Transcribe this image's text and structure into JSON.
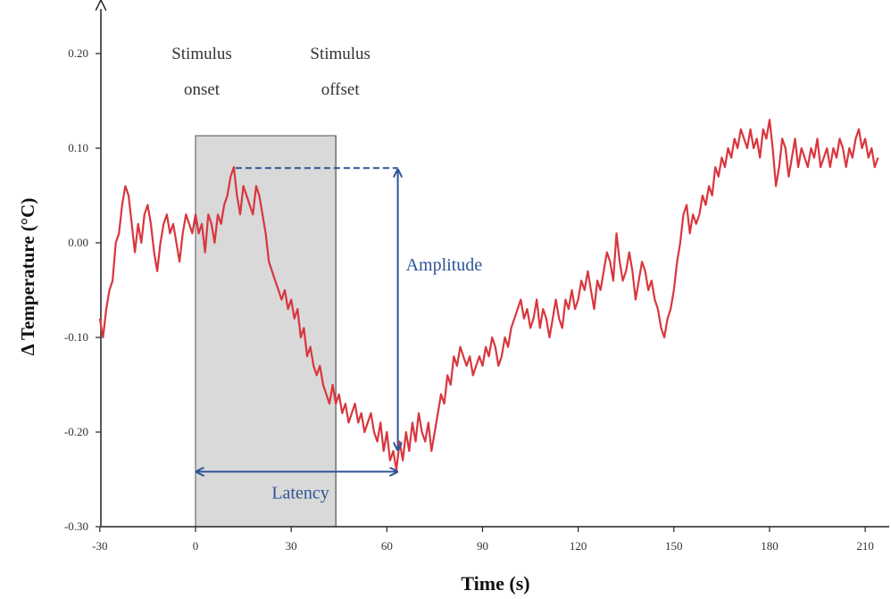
{
  "chart_data": {
    "type": "line",
    "title": "",
    "xlabel": "Time (s)",
    "ylabel": "Δ Temperature (°C)",
    "xlim": [
      -30,
      215
    ],
    "ylim": [
      -0.3,
      0.25
    ],
    "x_ticks": [
      {
        "value": -30,
        "label": "-30"
      },
      {
        "value": 0,
        "label": "0"
      },
      {
        "value": 30,
        "label": "30"
      },
      {
        "value": 60,
        "label": "60"
      },
      {
        "value": 90,
        "label": "90"
      },
      {
        "value": 120,
        "label": "120"
      },
      {
        "value": 150,
        "label": "150"
      },
      {
        "value": 180,
        "label": "180"
      },
      {
        "value": 210,
        "label": "210"
      }
    ],
    "y_ticks": [
      {
        "value": 0.2,
        "label": "0.20"
      },
      {
        "value": 0.1,
        "label": "0.10"
      },
      {
        "value": 0.0,
        "label": "0.00"
      },
      {
        "value": -0.1,
        "label": "-0.10"
      },
      {
        "value": -0.2,
        "label": "-0.20"
      },
      {
        "value": -0.3,
        "label": "-0.30"
      }
    ],
    "grid": false,
    "line_color": "#d9363e",
    "annotation_color": "#2e5496",
    "stimulus_region": {
      "start": 0,
      "end": 44,
      "fill": "#d9d9d9",
      "onset_label": [
        "Stimulus",
        "onset"
      ],
      "offset_label": [
        "Stimulus",
        "offset"
      ]
    },
    "amplitude": {
      "label": "Amplitude",
      "peak_y": 0.08,
      "trough_y": -0.22,
      "peak_x_start": 12,
      "arrow_x": 64
    },
    "latency": {
      "label": "Latency",
      "x_start": 0,
      "x_end": 63,
      "y": -0.24
    },
    "series": [
      {
        "values": [
          [
            -30,
            -0.08
          ],
          [
            -29,
            -0.1
          ],
          [
            -28,
            -0.07
          ],
          [
            -27,
            -0.05
          ],
          [
            -26,
            -0.04
          ],
          [
            -25,
            0.0
          ],
          [
            -24,
            0.01
          ],
          [
            -23,
            0.04
          ],
          [
            -22,
            0.06
          ],
          [
            -21,
            0.05
          ],
          [
            -20,
            0.02
          ],
          [
            -19,
            -0.01
          ],
          [
            -18,
            0.02
          ],
          [
            -17,
            0.0
          ],
          [
            -16,
            0.03
          ],
          [
            -15,
            0.04
          ],
          [
            -14,
            0.02
          ],
          [
            -13,
            -0.01
          ],
          [
            -12,
            -0.03
          ],
          [
            -11,
            0.0
          ],
          [
            -10,
            0.02
          ],
          [
            -9,
            0.03
          ],
          [
            -8,
            0.01
          ],
          [
            -7,
            0.02
          ],
          [
            -6,
            0.0
          ],
          [
            -5,
            -0.02
          ],
          [
            -4,
            0.01
          ],
          [
            -3,
            0.03
          ],
          [
            -2,
            0.02
          ],
          [
            -1,
            0.01
          ],
          [
            0,
            0.03
          ],
          [
            1,
            0.01
          ],
          [
            2,
            0.02
          ],
          [
            3,
            -0.01
          ],
          [
            4,
            0.03
          ],
          [
            5,
            0.02
          ],
          [
            6,
            0.0
          ],
          [
            7,
            0.03
          ],
          [
            8,
            0.02
          ],
          [
            9,
            0.04
          ],
          [
            10,
            0.05
          ],
          [
            11,
            0.07
          ],
          [
            12,
            0.08
          ],
          [
            13,
            0.05
          ],
          [
            14,
            0.03
          ],
          [
            15,
            0.06
          ],
          [
            16,
            0.05
          ],
          [
            17,
            0.04
          ],
          [
            18,
            0.03
          ],
          [
            19,
            0.06
          ],
          [
            20,
            0.05
          ],
          [
            21,
            0.03
          ],
          [
            22,
            0.01
          ],
          [
            23,
            -0.02
          ],
          [
            24,
            -0.03
          ],
          [
            25,
            -0.04
          ],
          [
            26,
            -0.05
          ],
          [
            27,
            -0.06
          ],
          [
            28,
            -0.05
          ],
          [
            29,
            -0.07
          ],
          [
            30,
            -0.06
          ],
          [
            31,
            -0.08
          ],
          [
            32,
            -0.07
          ],
          [
            33,
            -0.1
          ],
          [
            34,
            -0.09
          ],
          [
            35,
            -0.12
          ],
          [
            36,
            -0.11
          ],
          [
            37,
            -0.13
          ],
          [
            38,
            -0.14
          ],
          [
            39,
            -0.13
          ],
          [
            40,
            -0.15
          ],
          [
            41,
            -0.16
          ],
          [
            42,
            -0.17
          ],
          [
            43,
            -0.15
          ],
          [
            44,
            -0.17
          ],
          [
            45,
            -0.16
          ],
          [
            46,
            -0.18
          ],
          [
            47,
            -0.17
          ],
          [
            48,
            -0.19
          ],
          [
            49,
            -0.18
          ],
          [
            50,
            -0.17
          ],
          [
            51,
            -0.19
          ],
          [
            52,
            -0.18
          ],
          [
            53,
            -0.2
          ],
          [
            54,
            -0.19
          ],
          [
            55,
            -0.18
          ],
          [
            56,
            -0.2
          ],
          [
            57,
            -0.21
          ],
          [
            58,
            -0.19
          ],
          [
            59,
            -0.22
          ],
          [
            60,
            -0.2
          ],
          [
            61,
            -0.23
          ],
          [
            62,
            -0.22
          ],
          [
            63,
            -0.24
          ],
          [
            64,
            -0.21
          ],
          [
            65,
            -0.23
          ],
          [
            66,
            -0.2
          ],
          [
            67,
            -0.22
          ],
          [
            68,
            -0.19
          ],
          [
            69,
            -0.21
          ],
          [
            70,
            -0.18
          ],
          [
            71,
            -0.2
          ],
          [
            72,
            -0.21
          ],
          [
            73,
            -0.19
          ],
          [
            74,
            -0.22
          ],
          [
            75,
            -0.2
          ],
          [
            76,
            -0.18
          ],
          [
            77,
            -0.16
          ],
          [
            78,
            -0.17
          ],
          [
            79,
            -0.14
          ],
          [
            80,
            -0.15
          ],
          [
            81,
            -0.12
          ],
          [
            82,
            -0.13
          ],
          [
            83,
            -0.11
          ],
          [
            84,
            -0.12
          ],
          [
            85,
            -0.13
          ],
          [
            86,
            -0.12
          ],
          [
            87,
            -0.14
          ],
          [
            88,
            -0.13
          ],
          [
            89,
            -0.12
          ],
          [
            90,
            -0.13
          ],
          [
            91,
            -0.11
          ],
          [
            92,
            -0.12
          ],
          [
            93,
            -0.1
          ],
          [
            94,
            -0.11
          ],
          [
            95,
            -0.13
          ],
          [
            96,
            -0.12
          ],
          [
            97,
            -0.1
          ],
          [
            98,
            -0.11
          ],
          [
            99,
            -0.09
          ],
          [
            100,
            -0.08
          ],
          [
            101,
            -0.07
          ],
          [
            102,
            -0.06
          ],
          [
            103,
            -0.08
          ],
          [
            104,
            -0.07
          ],
          [
            105,
            -0.09
          ],
          [
            106,
            -0.08
          ],
          [
            107,
            -0.06
          ],
          [
            108,
            -0.09
          ],
          [
            109,
            -0.07
          ],
          [
            110,
            -0.08
          ],
          [
            111,
            -0.1
          ],
          [
            112,
            -0.08
          ],
          [
            113,
            -0.06
          ],
          [
            114,
            -0.08
          ],
          [
            115,
            -0.09
          ],
          [
            116,
            -0.06
          ],
          [
            117,
            -0.07
          ],
          [
            118,
            -0.05
          ],
          [
            119,
            -0.07
          ],
          [
            120,
            -0.06
          ],
          [
            121,
            -0.04
          ],
          [
            122,
            -0.05
          ],
          [
            123,
            -0.03
          ],
          [
            124,
            -0.05
          ],
          [
            125,
            -0.07
          ],
          [
            126,
            -0.04
          ],
          [
            127,
            -0.05
          ],
          [
            128,
            -0.03
          ],
          [
            129,
            -0.01
          ],
          [
            130,
            -0.02
          ],
          [
            131,
            -0.04
          ],
          [
            132,
            0.01
          ],
          [
            133,
            -0.02
          ],
          [
            134,
            -0.04
          ],
          [
            135,
            -0.03
          ],
          [
            136,
            -0.01
          ],
          [
            137,
            -0.03
          ],
          [
            138,
            -0.06
          ],
          [
            139,
            -0.04
          ],
          [
            140,
            -0.02
          ],
          [
            141,
            -0.03
          ],
          [
            142,
            -0.05
          ],
          [
            143,
            -0.04
          ],
          [
            144,
            -0.06
          ],
          [
            145,
            -0.07
          ],
          [
            146,
            -0.09
          ],
          [
            147,
            -0.1
          ],
          [
            148,
            -0.08
          ],
          [
            149,
            -0.07
          ],
          [
            150,
            -0.05
          ],
          [
            151,
            -0.02
          ],
          [
            152,
            0.0
          ],
          [
            153,
            0.03
          ],
          [
            154,
            0.04
          ],
          [
            155,
            0.01
          ],
          [
            156,
            0.03
          ],
          [
            157,
            0.02
          ],
          [
            158,
            0.03
          ],
          [
            159,
            0.05
          ],
          [
            160,
            0.04
          ],
          [
            161,
            0.06
          ],
          [
            162,
            0.05
          ],
          [
            163,
            0.08
          ],
          [
            164,
            0.07
          ],
          [
            165,
            0.09
          ],
          [
            166,
            0.08
          ],
          [
            167,
            0.1
          ],
          [
            168,
            0.09
          ],
          [
            169,
            0.11
          ],
          [
            170,
            0.1
          ],
          [
            171,
            0.12
          ],
          [
            172,
            0.11
          ],
          [
            173,
            0.1
          ],
          [
            174,
            0.12
          ],
          [
            175,
            0.1
          ],
          [
            176,
            0.11
          ],
          [
            177,
            0.09
          ],
          [
            178,
            0.12
          ],
          [
            179,
            0.11
          ],
          [
            180,
            0.13
          ],
          [
            181,
            0.1
          ],
          [
            182,
            0.06
          ],
          [
            183,
            0.08
          ],
          [
            184,
            0.11
          ],
          [
            185,
            0.1
          ],
          [
            186,
            0.07
          ],
          [
            187,
            0.09
          ],
          [
            188,
            0.11
          ],
          [
            189,
            0.08
          ],
          [
            190,
            0.1
          ],
          [
            191,
            0.09
          ],
          [
            192,
            0.08
          ],
          [
            193,
            0.1
          ],
          [
            194,
            0.09
          ],
          [
            195,
            0.11
          ],
          [
            196,
            0.08
          ],
          [
            197,
            0.09
          ],
          [
            198,
            0.1
          ],
          [
            199,
            0.08
          ],
          [
            200,
            0.1
          ],
          [
            201,
            0.09
          ],
          [
            202,
            0.11
          ],
          [
            203,
            0.1
          ],
          [
            204,
            0.08
          ],
          [
            205,
            0.1
          ],
          [
            206,
            0.09
          ],
          [
            207,
            0.11
          ],
          [
            208,
            0.12
          ],
          [
            209,
            0.1
          ],
          [
            210,
            0.11
          ],
          [
            211,
            0.09
          ],
          [
            212,
            0.1
          ],
          [
            213,
            0.08
          ],
          [
            214,
            0.09
          ]
        ]
      }
    ]
  }
}
